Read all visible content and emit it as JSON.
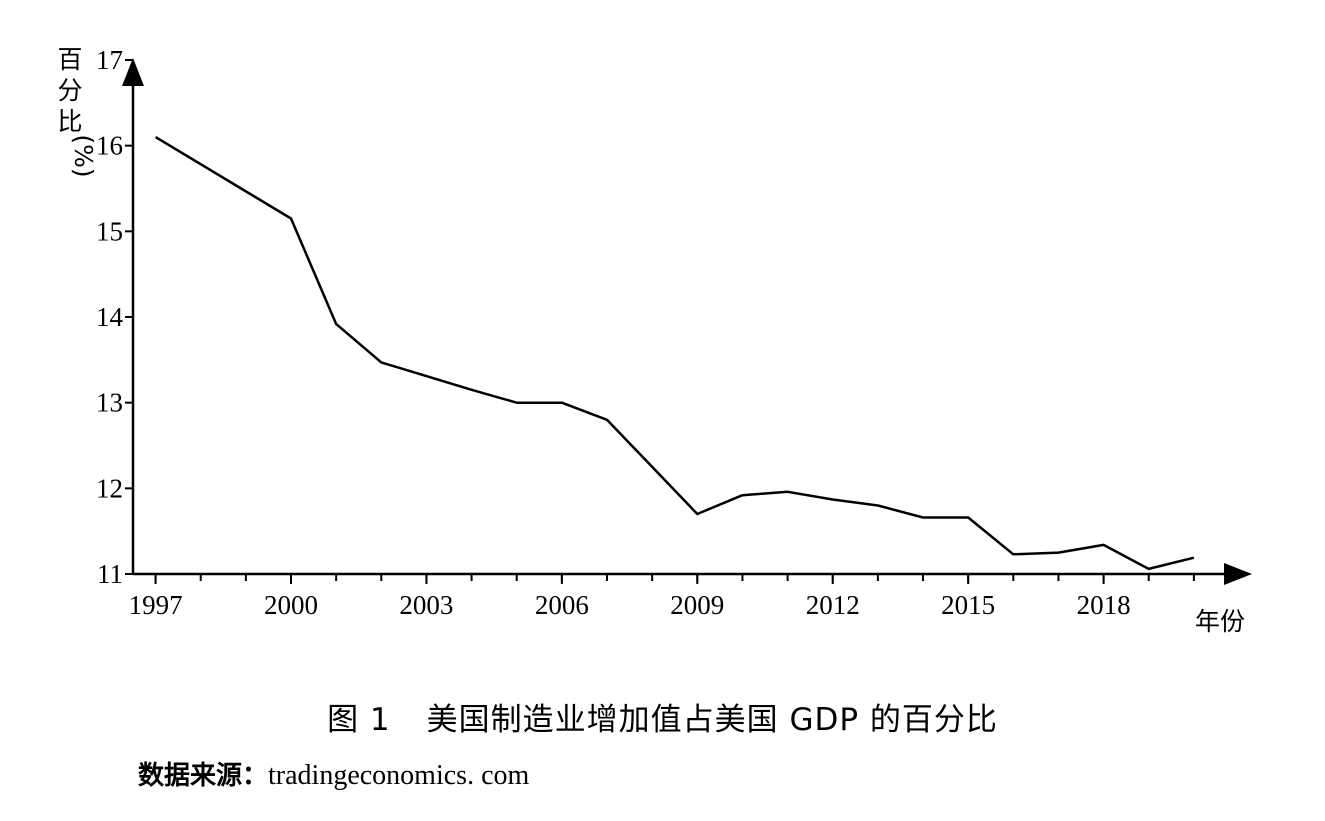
{
  "chart_data": {
    "type": "line",
    "title": "",
    "xlabel": "年份",
    "ylabel": "百分比(%)",
    "ylabel_chars": [
      "百",
      "分",
      "比",
      "(%)"
    ],
    "xlim": [
      1996.5,
      2020.8
    ],
    "ylim": [
      11,
      17
    ],
    "x_ticks": [
      1997,
      2000,
      2003,
      2006,
      2009,
      2012,
      2015,
      2018
    ],
    "x_minor_ticks": [
      1997,
      1998,
      1999,
      2000,
      2001,
      2002,
      2003,
      2004,
      2005,
      2006,
      2007,
      2008,
      2009,
      2010,
      2011,
      2012,
      2013,
      2014,
      2015,
      2016,
      2017,
      2018,
      2019,
      2020
    ],
    "y_ticks": [
      11,
      12,
      13,
      14,
      15,
      16,
      17
    ],
    "grid": false,
    "series": [
      {
        "x": [
          1997,
          2000,
          2001,
          2002,
          2003,
          2004,
          2005,
          2006,
          2007,
          2008,
          2009,
          2010,
          2011,
          2012,
          2013,
          2014,
          2015,
          2016,
          2017,
          2018,
          2019,
          2020
        ],
        "values": [
          16.1,
          15.15,
          13.92,
          13.47,
          13.31,
          13.15,
          13.0,
          13.0,
          12.8,
          12.25,
          11.7,
          11.92,
          11.96,
          11.87,
          11.8,
          11.66,
          11.66,
          11.23,
          11.25,
          11.34,
          11.06,
          11.19
        ]
      }
    ]
  },
  "caption": {
    "figure_number": "图 1",
    "text": "美国制造业增加值占美国 GDP 的百分比"
  },
  "source": {
    "label": "数据来源：",
    "value": "tradingeconomics. com"
  }
}
